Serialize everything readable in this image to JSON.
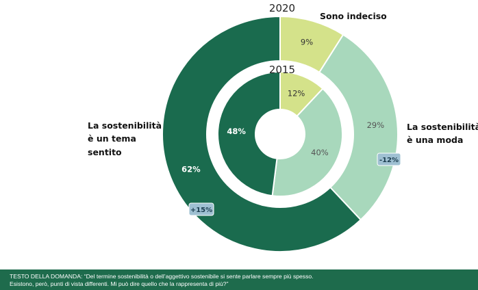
{
  "chart_data": {
    "type": "pie",
    "subtype": "nested-donut",
    "categories": [
      "Sono indeciso",
      "La sostenibilità è una moda",
      "La sostenibilità è un tema sentito"
    ],
    "category_label_lines": {
      "undecided": [
        "Sono indeciso"
      ],
      "fashion": [
        "La sostenibilità",
        "è una moda"
      ],
      "felt": [
        "La sostenibilità",
        "è un tema",
        "sentito"
      ]
    },
    "series": [
      {
        "name": "2020",
        "values": [
          9,
          29,
          62
        ],
        "labels": [
          "9%",
          "29%",
          "62%"
        ]
      },
      {
        "name": "2015",
        "values": [
          12,
          40,
          48
        ],
        "labels": [
          "12%",
          "40%",
          "48%"
        ]
      }
    ],
    "changes": [
      {
        "category": "La sostenibilità è una moda",
        "label": "-12%"
      },
      {
        "category": "La sostenibilità è un tema sentito",
        "label": "+15%"
      }
    ],
    "colors": [
      "#d4e28a",
      "#a8d8bc",
      "#1a6b4e"
    ],
    "label_colors": [
      "#333333",
      "#555555",
      "#ffffff"
    ],
    "badge_color": "#9fc0d2"
  },
  "footer": {
    "line1": "TESTO DELLA DOMANDA: “Del termine sostenibilità o dell’aggettivo sostenibile si sente parlare sempre più spesso.",
    "line2": "Esistono, però, punti di vista differenti. Mi può dire quello che la rappresenta di più?”"
  }
}
